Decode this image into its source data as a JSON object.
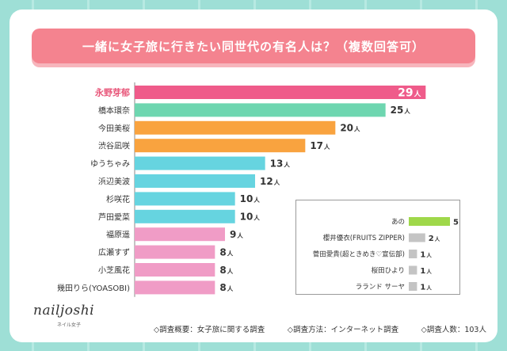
{
  "title": "一緒に女子旅に行きたい同世代の有名人は？（複数回答可）",
  "unit": "人",
  "colors": {
    "background": "#9edfd6",
    "title_band": "#f4838f",
    "highlight_label": "#e8577a"
  },
  "chart_data": [
    {
      "type": "bar",
      "orientation": "horizontal",
      "categories": [
        "永野芽郁",
        "橋本環奈",
        "今田美桜",
        "渋谷凪咲",
        "ゆうちゃみ",
        "浜辺美波",
        "杉咲花",
        "芦田愛菜",
        "福原遥",
        "広瀬すず",
        "小芝風花",
        "幾田りら(YOASOBI)"
      ],
      "values": [
        29,
        25,
        20,
        17,
        13,
        12,
        10,
        10,
        9,
        8,
        8,
        8
      ],
      "colors": [
        "#ef5b8a",
        "#6ed6b0",
        "#f9a33f",
        "#f9a33f",
        "#66d4e0",
        "#66d4e0",
        "#66d4e0",
        "#66d4e0",
        "#f09cc6",
        "#f09cc6",
        "#f09cc6",
        "#f09cc6"
      ],
      "data_labels": [
        "29人",
        "25人",
        "20人",
        "17人",
        "13人",
        "12人",
        "10人",
        "10人",
        "9人",
        "8人",
        "8人",
        "8人"
      ],
      "xlim": [
        0,
        30
      ]
    },
    {
      "type": "bar",
      "orientation": "horizontal",
      "categories": [
        "あの",
        "櫻井優衣(FRUITS ZIPPER)",
        "菅田愛貴(超ときめき♡宣伝部)",
        "桜田ひより",
        "ラランド サーヤ"
      ],
      "values": [
        5,
        2,
        1,
        1,
        1
      ],
      "colors": [
        "#9fd84a",
        "#c4c4c4",
        "#c4c4c4",
        "#c4c4c4",
        "#c4c4c4"
      ],
      "data_labels": [
        "5人",
        "2人",
        "1人",
        "1人",
        "1人"
      ],
      "xlim": [
        0,
        5
      ]
    }
  ],
  "footer": {
    "overview": "◇調査概要：女子旅に関する調査",
    "method": "◇調査方法：インターネット調査",
    "count": "◇調査人数：103人"
  },
  "logo": {
    "name": "nailjoshi",
    "sub": "ネイル女子"
  }
}
